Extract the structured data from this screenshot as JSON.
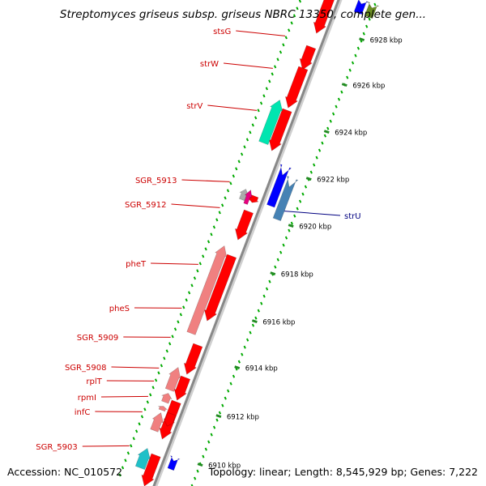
{
  "header": {
    "title": "Streptomyces griseus subsp. griseus NBRC 13350, complete gen..."
  },
  "footer": {
    "accession": "Accession: NC_010572",
    "topology": "Topology: linear; Length: 8,545,929 bp; Genes: 7,222"
  },
  "colors": {
    "forward_gene": "#ff0000",
    "reverse_gene": "#0000ff",
    "tick_major": "#228b22",
    "tick_minor": "#00aa00",
    "label_text": "#cc0000",
    "reverse_label_text": "#000080",
    "rna_gene": "#f08080",
    "teal_gene": "#00e5b0",
    "magenta_gene": "#e6007e",
    "gray_gene": "#aaaaaa",
    "steelblue_gene": "#4682b4",
    "cyan_gene": "#20c0c8",
    "olive_gene": "#6b8e23",
    "backbone": "#888888"
  },
  "scale": {
    "unit": "kbp",
    "ticks": [
      6910,
      6912,
      6914,
      6916,
      6918,
      6920,
      6922,
      6924,
      6926,
      6928
    ]
  },
  "genes": [
    {
      "name": "stsG",
      "strand": "+",
      "label_side": "left"
    },
    {
      "name": "strW",
      "strand": "+",
      "label_side": "left"
    },
    {
      "name": "strV",
      "strand": "+",
      "label_side": "left"
    },
    {
      "name": "SGR_5913",
      "strand": "+",
      "label_side": "left"
    },
    {
      "name": "SGR_5912",
      "strand": "+",
      "label_side": "left"
    },
    {
      "name": "pheT",
      "strand": "+",
      "label_side": "left"
    },
    {
      "name": "pheS",
      "strand": "+",
      "label_side": "left"
    },
    {
      "name": "SGR_5909",
      "strand": "+",
      "label_side": "left"
    },
    {
      "name": "SGR_5908",
      "strand": "+",
      "label_side": "left"
    },
    {
      "name": "rplT",
      "strand": "+",
      "label_side": "left"
    },
    {
      "name": "rpmI",
      "strand": "+",
      "label_side": "left"
    },
    {
      "name": "infC",
      "strand": "+",
      "label_side": "left"
    },
    {
      "name": "SGR_5903",
      "strand": "+",
      "label_side": "left"
    },
    {
      "name": "strU",
      "strand": "-",
      "label_side": "right"
    }
  ]
}
